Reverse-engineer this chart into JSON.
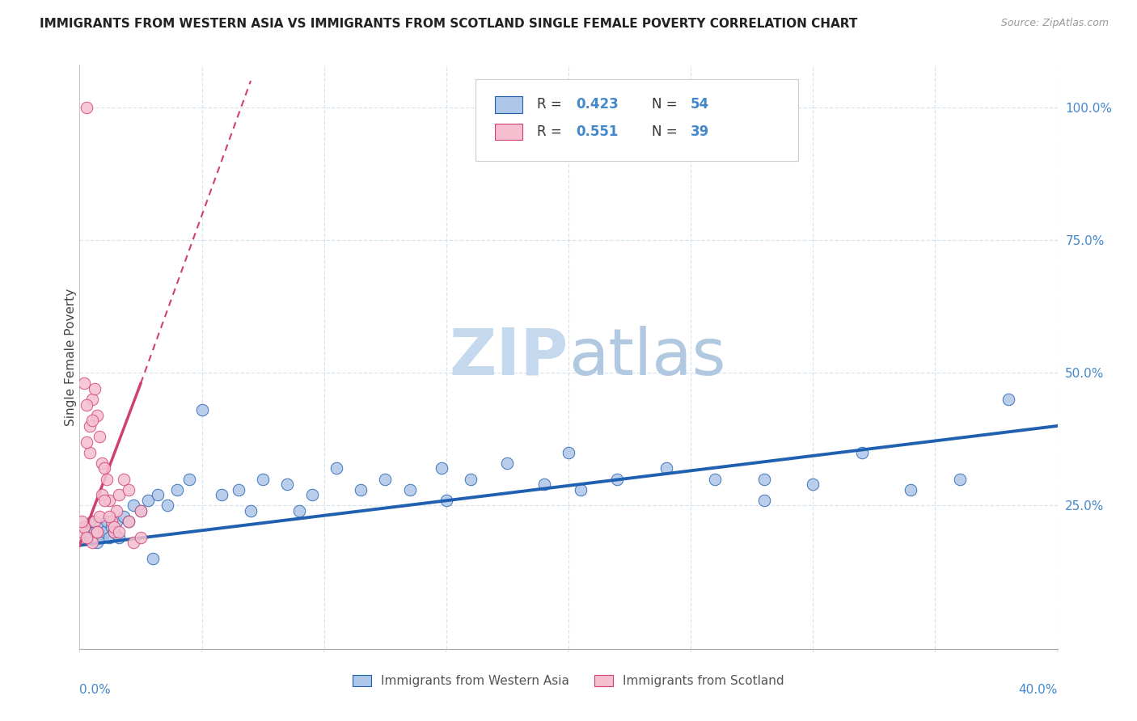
{
  "title": "IMMIGRANTS FROM WESTERN ASIA VS IMMIGRANTS FROM SCOTLAND SINGLE FEMALE POVERTY CORRELATION CHART",
  "source": "Source: ZipAtlas.com",
  "ylabel": "Single Female Poverty",
  "legend_blue_label": "Immigrants from Western Asia",
  "legend_pink_label": "Immigrants from Scotland",
  "blue_color": "#aec6e8",
  "pink_color": "#f5bfd0",
  "blue_line_color": "#2060b0",
  "pink_line_color": "#d04070",
  "watermark_zip_color": "#c5d9ee",
  "watermark_atlas_color": "#b0c8e0",
  "right_axis_color": "#4488cc",
  "right_ytick_labels": [
    "25.0%",
    "50.0%",
    "75.0%",
    "100.0%"
  ],
  "right_ytick_values": [
    0.25,
    0.5,
    0.75,
    1.0
  ],
  "xlim": [
    0.0,
    0.4
  ],
  "ylim": [
    -0.02,
    1.08
  ],
  "grid_color": "#d8e4ed",
  "spine_color": "#aaaaaa",
  "blue_x": [
    0.002,
    0.003,
    0.004,
    0.005,
    0.006,
    0.007,
    0.008,
    0.009,
    0.01,
    0.011,
    0.012,
    0.013,
    0.014,
    0.015,
    0.016,
    0.018,
    0.02,
    0.022,
    0.025,
    0.028,
    0.032,
    0.036,
    0.04,
    0.045,
    0.05,
    0.058,
    0.065,
    0.075,
    0.085,
    0.095,
    0.105,
    0.115,
    0.125,
    0.135,
    0.148,
    0.16,
    0.175,
    0.19,
    0.205,
    0.22,
    0.24,
    0.26,
    0.28,
    0.3,
    0.32,
    0.34,
    0.36,
    0.38,
    0.2,
    0.15,
    0.07,
    0.03,
    0.09,
    0.28
  ],
  "blue_y": [
    0.21,
    0.2,
    0.19,
    0.22,
    0.2,
    0.18,
    0.21,
    0.19,
    0.2,
    0.22,
    0.19,
    0.21,
    0.2,
    0.22,
    0.19,
    0.23,
    0.22,
    0.25,
    0.24,
    0.26,
    0.27,
    0.25,
    0.28,
    0.3,
    0.43,
    0.27,
    0.28,
    0.3,
    0.29,
    0.27,
    0.32,
    0.28,
    0.3,
    0.28,
    0.32,
    0.3,
    0.33,
    0.29,
    0.28,
    0.3,
    0.32,
    0.3,
    0.3,
    0.29,
    0.35,
    0.28,
    0.3,
    0.45,
    0.35,
    0.26,
    0.24,
    0.15,
    0.24,
    0.26
  ],
  "pink_x": [
    0.001,
    0.002,
    0.003,
    0.004,
    0.005,
    0.006,
    0.007,
    0.008,
    0.009,
    0.01,
    0.011,
    0.012,
    0.013,
    0.014,
    0.015,
    0.016,
    0.018,
    0.02,
    0.022,
    0.025,
    0.002,
    0.003,
    0.004,
    0.005,
    0.006,
    0.007,
    0.008,
    0.009,
    0.01,
    0.012,
    0.014,
    0.016,
    0.02,
    0.025,
    0.001,
    0.003,
    0.005,
    0.007,
    0.003
  ],
  "pink_y": [
    0.2,
    0.21,
    1.0,
    0.35,
    0.45,
    0.47,
    0.42,
    0.38,
    0.33,
    0.32,
    0.3,
    0.26,
    0.22,
    0.2,
    0.24,
    0.27,
    0.3,
    0.28,
    0.18,
    0.24,
    0.48,
    0.44,
    0.4,
    0.18,
    0.22,
    0.2,
    0.23,
    0.27,
    0.26,
    0.23,
    0.21,
    0.2,
    0.22,
    0.19,
    0.22,
    0.37,
    0.41,
    0.2,
    0.19
  ],
  "blue_trend_x0": 0.0,
  "blue_trend_y0": 0.175,
  "blue_trend_x1": 0.4,
  "blue_trend_y1": 0.4,
  "pink_trend_solid_x0": 0.0,
  "pink_trend_solid_y0": 0.175,
  "pink_trend_solid_x1": 0.025,
  "pink_trend_solid_y1": 0.48,
  "pink_trend_dash_x0": 0.025,
  "pink_trend_dash_y0": 0.48,
  "pink_trend_dash_x1": 0.07,
  "pink_trend_dash_y1": 1.05
}
